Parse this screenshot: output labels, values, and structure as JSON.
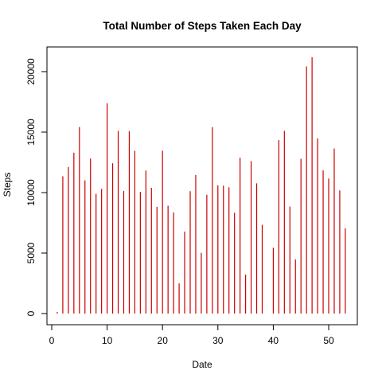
{
  "chart_data": {
    "type": "bar",
    "title": "Total Number of Steps Taken Each Day",
    "xlabel": "Date",
    "ylabel": "Steps",
    "xlim": [
      0,
      54
    ],
    "ylim": [
      0,
      22000
    ],
    "xticks": [
      0,
      10,
      20,
      30,
      40,
      50
    ],
    "yticks": [
      0,
      5000,
      10000,
      15000,
      20000
    ],
    "grid": false,
    "bar_color": "#cc0000",
    "x": [
      1,
      2,
      3,
      4,
      5,
      6,
      7,
      8,
      9,
      10,
      11,
      12,
      13,
      14,
      15,
      16,
      17,
      18,
      19,
      20,
      21,
      22,
      23,
      24,
      25,
      26,
      27,
      28,
      29,
      30,
      31,
      32,
      33,
      34,
      35,
      36,
      37,
      38,
      39,
      40,
      41,
      42,
      43,
      44,
      45,
      46,
      47,
      48,
      49,
      50,
      51,
      52,
      53
    ],
    "values": [
      126,
      11352,
      12116,
      13294,
      15420,
      11015,
      12811,
      9900,
      10304,
      17382,
      12426,
      15098,
      10139,
      15084,
      13452,
      10056,
      11829,
      10395,
      8821,
      13460,
      8918,
      8355,
      2492,
      6778,
      10119,
      11458,
      5018,
      9819,
      15414,
      10600,
      10571,
      10439,
      8334,
      12883,
      3219,
      12608,
      10765,
      7336,
      0,
      5441,
      14339,
      15110,
      8841,
      4472,
      12787,
      20427,
      21194,
      14478,
      11834,
      11162,
      13646,
      10183,
      7047
    ]
  }
}
